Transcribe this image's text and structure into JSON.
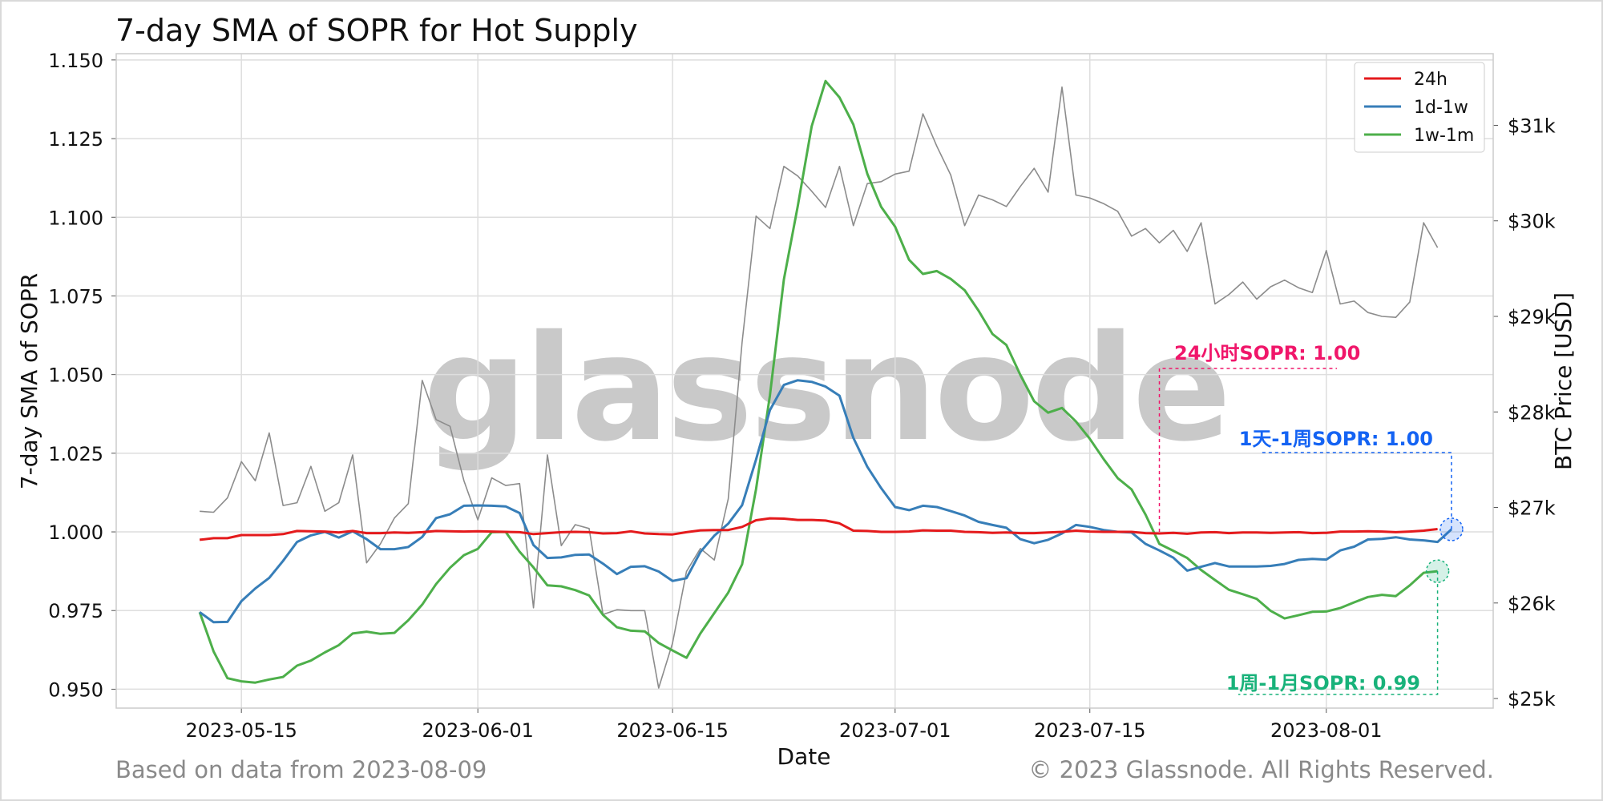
{
  "page": {
    "title": "7-day SMA of SOPR for Hot Supply",
    "footer_left": "Based on data from 2023-08-09",
    "footer_right": "© 2023 Glassnode. All Rights Reserved.",
    "watermark": "glassnode"
  },
  "colors": {
    "s24h": "#e41a1c",
    "s1d1w": "#377eb8",
    "s1w1m": "#4daf4a",
    "price": "#8c8c8c",
    "ann24": "#f0166a",
    "ann1d": "#1463f3",
    "ann1w": "#18b27a"
  },
  "chart_data": {
    "type": "line",
    "title": "7-day SMA of SOPR for Hot Supply",
    "xlabel": "Date",
    "ylabel": "7-day SMA of SOPR",
    "y2label": "BTC Price [USD]",
    "x_start": "2023-05-12",
    "x_end": "2023-08-09",
    "xlim": [
      "2023-05-06",
      "2023-08-13"
    ],
    "ylim": [
      0.944,
      1.152
    ],
    "y2lim": [
      24900,
      31750
    ],
    "x_ticks": [
      "2023-05-15",
      "2023-06-01",
      "2023-06-15",
      "2023-07-01",
      "2023-07-15",
      "2023-08-01"
    ],
    "y_ticks": [
      "0.950",
      "0.975",
      "1.000",
      "1.025",
      "1.050",
      "1.075",
      "1.100",
      "1.125",
      "1.150"
    ],
    "y2_ticks": [
      "$25k",
      "$26k",
      "$27k",
      "$28k",
      "$29k",
      "$30k",
      "$31k"
    ],
    "grid": true,
    "legend_position": "top-right",
    "series": [
      {
        "name": "24h",
        "color_key": "s24h",
        "values": [
          0.9975,
          0.998,
          0.998,
          0.999,
          0.999,
          0.999,
          0.9993,
          1.0003,
          1.0002,
          1.0001,
          0.9998,
          1.0003,
          0.9996,
          0.9996,
          0.9998,
          0.9997,
          0.9999,
          1.0003,
          1.0002,
          1.0001,
          1.0002,
          1.0001,
          1.0,
          0.9999,
          0.9993,
          0.9996,
          0.9999,
          1.0,
          0.9999,
          0.9995,
          0.9996,
          1.0002,
          0.9995,
          0.9993,
          0.9992,
          0.9999,
          1.0005,
          1.0006,
          1.0006,
          1.0016,
          1.0037,
          1.0043,
          1.0042,
          1.0038,
          1.0038,
          1.0036,
          1.0027,
          1.0004,
          1.0003,
          1.0,
          1.0,
          1.0001,
          1.0005,
          1.0004,
          1.0004,
          1.0,
          0.9999,
          0.9997,
          0.9998,
          0.9996,
          0.9996,
          0.9998,
          1.0,
          1.0004,
          1.0001,
          1.0,
          1.0,
          1.0,
          0.9996,
          0.9995,
          0.9997,
          0.9994,
          0.9998,
          0.9999,
          0.9996,
          0.9998,
          0.9998,
          0.9997,
          0.9998,
          0.9999,
          0.9996,
          0.9997,
          1.0001,
          1.0001,
          1.0002,
          1.0001,
          0.9999,
          1.0001,
          1.0004,
          1.0009
        ]
      },
      {
        "name": "1d-1w",
        "color_key": "s1d1w",
        "values": [
          0.9745,
          0.9713,
          0.9714,
          0.978,
          0.982,
          0.9854,
          0.9908,
          0.9968,
          0.9989,
          1.0,
          0.9982,
          1.0002,
          0.9977,
          0.9945,
          0.9945,
          0.9952,
          0.9984,
          1.0044,
          1.0056,
          1.0083,
          1.0084,
          1.0083,
          1.0081,
          1.006,
          0.9958,
          0.9917,
          0.9919,
          0.9927,
          0.9928,
          0.9899,
          0.9866,
          0.9889,
          0.9891,
          0.9874,
          0.9844,
          0.9853,
          0.9936,
          0.9988,
          1.0026,
          1.0085,
          1.023,
          1.0387,
          1.0467,
          1.0482,
          1.0477,
          1.0462,
          1.0433,
          1.0299,
          1.0207,
          1.0139,
          1.0079,
          1.0069,
          1.0083,
          1.0079,
          1.0066,
          1.0052,
          1.0032,
          1.0022,
          1.0013,
          0.9977,
          0.9964,
          0.9975,
          0.9995,
          1.0022,
          1.0016,
          1.0006,
          1.0,
          0.9998,
          0.9962,
          0.9941,
          0.9918,
          0.9877,
          0.9889,
          0.9901,
          0.989,
          0.989,
          0.989,
          0.9892,
          0.9898,
          0.9911,
          0.9914,
          0.9912,
          0.9941,
          0.9953,
          0.9976,
          0.9978,
          0.9983,
          0.9976,
          0.9973,
          0.9968,
          1.0008
        ]
      },
      {
        "name": "1w-1m",
        "color_key": "s1w1m",
        "values": [
          0.9745,
          0.962,
          0.9535,
          0.9525,
          0.9521,
          0.9531,
          0.9539,
          0.9575,
          0.9591,
          0.9617,
          0.964,
          0.9677,
          0.9683,
          0.9676,
          0.9679,
          0.9719,
          0.9769,
          0.9834,
          0.9886,
          0.9926,
          0.9946,
          0.9999,
          1.0,
          0.9937,
          0.9887,
          0.983,
          0.9827,
          0.9815,
          0.9798,
          0.9736,
          0.9697,
          0.9686,
          0.9684,
          0.9647,
          0.9623,
          0.96,
          0.9677,
          0.9742,
          0.9807,
          0.9897,
          1.0136,
          1.0434,
          1.0802,
          1.1035,
          1.1289,
          1.1433,
          1.1381,
          1.1295,
          1.1138,
          1.1033,
          1.097,
          1.0865,
          1.082,
          1.0829,
          1.0804,
          1.0768,
          1.0703,
          1.0629,
          1.0594,
          1.0499,
          1.0415,
          1.0379,
          1.0394,
          1.0351,
          1.0296,
          1.0231,
          1.0171,
          1.0135,
          1.0055,
          0.9962,
          0.994,
          0.9917,
          0.9879,
          0.9847,
          0.9816,
          0.9802,
          0.9787,
          0.9749,
          0.9725,
          0.9735,
          0.9746,
          0.9747,
          0.9758,
          0.9776,
          0.9793,
          0.98,
          0.9796,
          0.983,
          0.987,
          0.9875
        ]
      },
      {
        "name": "BTC Price",
        "axis": "right",
        "color_key": "price",
        "values": [
          26960,
          26950,
          27100,
          27480,
          27280,
          27780,
          27020,
          27050,
          27430,
          26960,
          27050,
          27550,
          26420,
          26620,
          26890,
          27040,
          28330,
          27920,
          27850,
          27280,
          26870,
          27310,
          27230,
          27250,
          25950,
          27550,
          26600,
          26820,
          26780,
          25880,
          25930,
          25920,
          25920,
          25110,
          25580,
          26330,
          26570,
          26450,
          27090,
          28730,
          30050,
          29920,
          30570,
          30470,
          30310,
          30140,
          30570,
          29950,
          30390,
          30410,
          30490,
          30520,
          31120,
          30780,
          30480,
          29950,
          30270,
          30220,
          30150,
          30360,
          30550,
          30300,
          31400,
          30270,
          30240,
          30180,
          30100,
          29840,
          29920,
          29770,
          29900,
          29680,
          29980,
          29130,
          29230,
          29360,
          29180,
          29310,
          29380,
          29300,
          29250,
          29690,
          29130,
          29160,
          29040,
          29000,
          28990,
          29150,
          29980,
          29720
        ]
      }
    ],
    "annotations": [
      {
        "label": "24小时SOPR: 1.00",
        "color_key": "ann24",
        "series": "24h"
      },
      {
        "label": "1天-1周SOPR: 1.00",
        "color_key": "ann1d",
        "series": "1d-1w"
      },
      {
        "label": "1周-1月SOPR: 0.99",
        "color_key": "ann1w",
        "series": "1w-1m"
      }
    ]
  }
}
